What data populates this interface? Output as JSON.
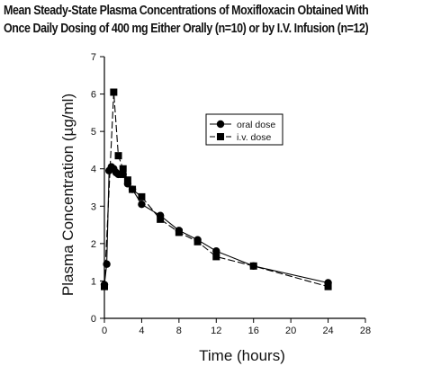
{
  "header": {
    "title_line1": "Mean Steady-State Plasma Concentrations of Moxifloxacin Obtained With",
    "title_line2": "Once Daily Dosing of 400 mg Either Orally (n=10) or by I.V. Infusion (n=12)"
  },
  "chart_data": {
    "type": "line",
    "title": "Mean Steady-State Plasma Concentrations of Moxifloxacin Obtained With Once Daily Dosing of 400 mg Either Orally (n=10) or by I.V. Infusion (n=12)",
    "xlabel": "Time (hours)",
    "ylabel": "Plasma Concentration (µg/ml)",
    "xlim": [
      0,
      28
    ],
    "ylim": [
      0,
      7
    ],
    "xticks": [
      "0",
      "4",
      "8",
      "12",
      "16",
      "20",
      "24",
      "28"
    ],
    "yticks": [
      "0",
      "1",
      "2",
      "3",
      "4",
      "5",
      "6",
      "7"
    ],
    "grid": false,
    "legend_position": "upper-right",
    "series": [
      {
        "name": "oral dose",
        "marker": "circle",
        "line_style": "solid",
        "color": "#000000",
        "x": [
          0,
          0.25,
          0.5,
          0.75,
          1,
          1.25,
          1.5,
          1.75,
          2,
          2.5,
          3,
          4,
          6,
          8,
          10,
          12,
          16,
          24
        ],
        "y": [
          0.9,
          1.45,
          3.95,
          4.05,
          4.0,
          3.9,
          3.85,
          3.85,
          3.85,
          3.6,
          3.45,
          3.05,
          2.75,
          2.35,
          2.1,
          1.8,
          1.4,
          0.95
        ]
      },
      {
        "name": "i.v.   dose",
        "marker": "square",
        "line_style": "dashed",
        "color": "#000000",
        "x": [
          0,
          1,
          1.5,
          2,
          2.5,
          3,
          4,
          6,
          8,
          10,
          12,
          16,
          24
        ],
        "y": [
          0.85,
          6.05,
          4.35,
          4.0,
          3.7,
          3.45,
          3.25,
          2.65,
          2.3,
          2.05,
          1.65,
          1.4,
          0.85
        ]
      }
    ]
  }
}
